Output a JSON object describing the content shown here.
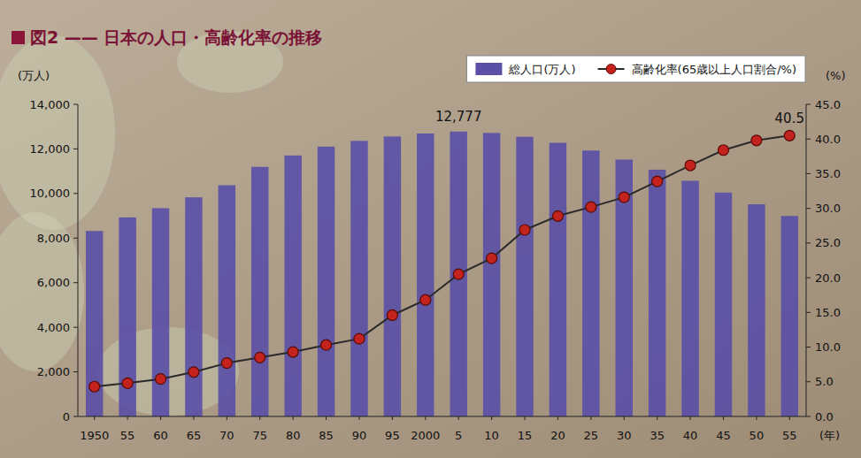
{
  "chart_data": {
    "type": "bar",
    "title": "図2 —— 日本の人口・高齢化率の推移",
    "x_label": "(年)",
    "y_label": "(万人)",
    "y2_label": "(%)",
    "categories": [
      "1950",
      "55",
      "60",
      "65",
      "70",
      "75",
      "80",
      "85",
      "90",
      "95",
      "2000",
      "5",
      "10",
      "15",
      "20",
      "25",
      "30",
      "35",
      "40",
      "45",
      "50",
      "55"
    ],
    "series": [
      {
        "name": "総人口(万人)",
        "type": "bar",
        "color": "#5b50a6",
        "values": [
          8320,
          8928,
          9342,
          9828,
          10372,
          11194,
          11706,
          12105,
          12361,
          12557,
          12693,
          12777,
          12718,
          12543,
          12273,
          11927,
          11522,
          11068,
          10570,
          10044,
          9515,
          8993
        ]
      },
      {
        "name": "高齢化率(65歳以上人口割合/%)",
        "type": "line",
        "axis": "y2",
        "color": "#c4221c",
        "marker": "circle",
        "line_style": "solid",
        "values": [
          4.3,
          4.8,
          5.4,
          6.4,
          7.7,
          8.5,
          9.3,
          10.3,
          11.2,
          14.6,
          16.8,
          20.5,
          22.8,
          26.9,
          28.9,
          30.2,
          31.6,
          33.9,
          36.2,
          38.4,
          39.8,
          40.5
        ]
      }
    ],
    "annotations": [
      {
        "text": "12,777",
        "series": 0,
        "index": 11
      },
      {
        "text": "40.5",
        "series": 1,
        "index": 21
      }
    ],
    "ylim": [
      0,
      14000
    ],
    "yticks": [
      0,
      {
        "value": 2000,
        "label": "2,000"
      },
      {
        "value": 4000,
        "label": "4,000"
      },
      {
        "value": 6000,
        "label": "6,000"
      },
      {
        "value": 8000,
        "label": "8,000"
      },
      {
        "value": 10000,
        "label": "10,000"
      },
      {
        "value": 12000,
        "label": "12,000"
      },
      {
        "value": 14000,
        "label": "14,000"
      }
    ],
    "y2lim": [
      0,
      45
    ],
    "y2ticks": [
      {
        "value": 0,
        "label": "0.0"
      },
      {
        "value": 5,
        "label": "5.0"
      },
      {
        "value": 10,
        "label": "10.0"
      },
      {
        "value": 15,
        "label": "15.0"
      },
      {
        "value": 20,
        "label": "20.0"
      },
      {
        "value": 25,
        "label": "25.0"
      },
      {
        "value": 30,
        "label": "30.0"
      },
      {
        "value": 35,
        "label": "35.0"
      },
      {
        "value": 40,
        "label": "40.0"
      },
      {
        "value": 45,
        "label": "45.0"
      }
    ],
    "grid": false,
    "legend": "top"
  }
}
